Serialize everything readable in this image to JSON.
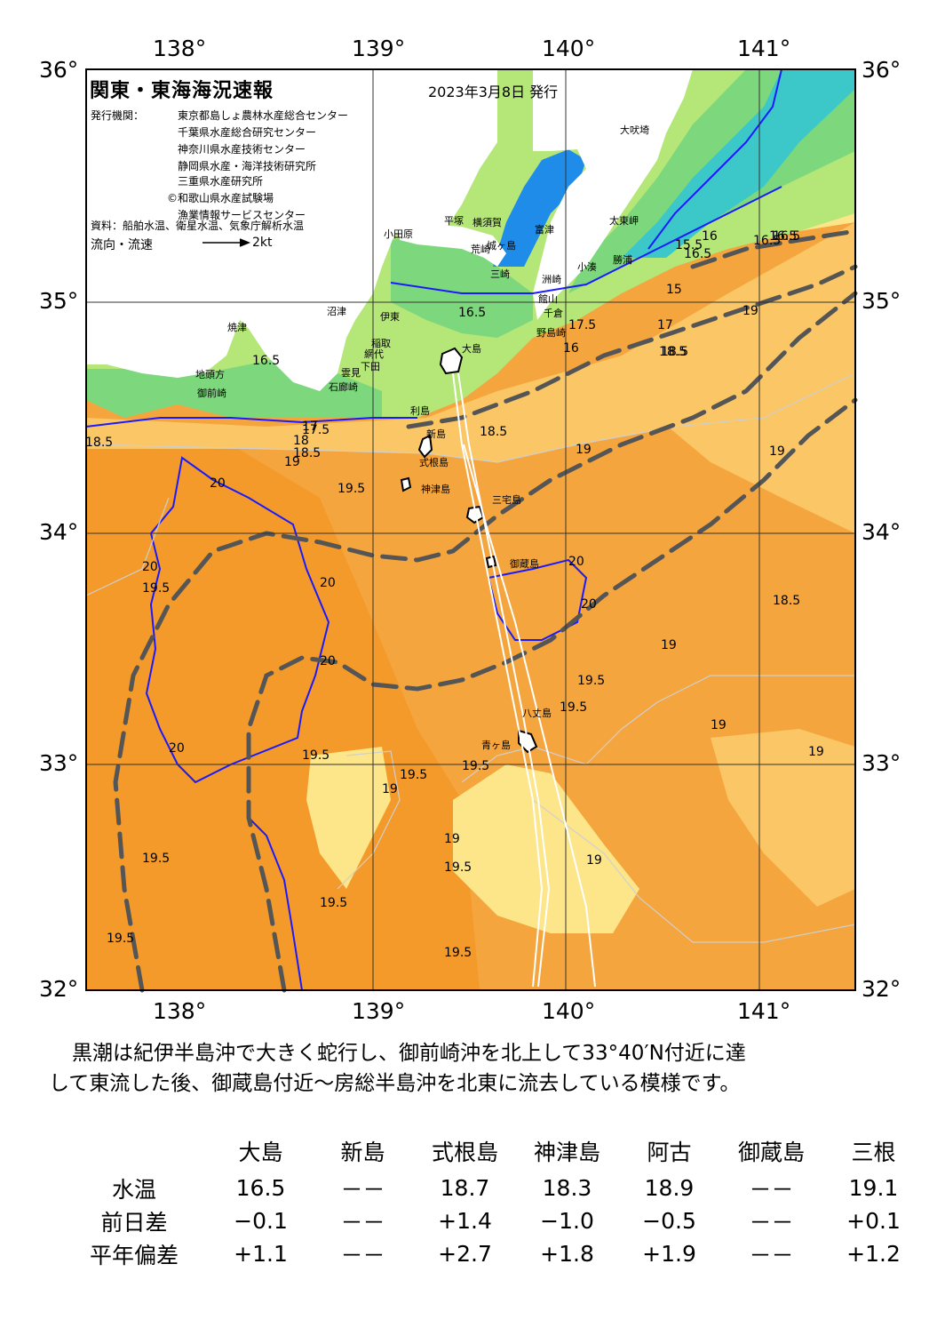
{
  "map": {
    "title": "関東・東海海況速報",
    "date": "2023年3月8日 発行",
    "agency_label": "発行機関：",
    "agencies": [
      "東京都島しょ農林水産総合センター",
      "千葉県水産総合研究センター",
      "神奈川県水産技術センター",
      "静岡県水産・海洋技術研究所",
      "三重県水産研究所",
      "©和歌山県水産試験場",
      "漁業情報サービスセンター"
    ],
    "source": "資料：船舶水温、衛星水温、気象庁解析水温",
    "flow_label": "流向・流速",
    "flow_scale": "2kt",
    "longitude_labels": [
      "138°",
      "139°",
      "140°",
      "141°"
    ],
    "latitude_labels": [
      "36°",
      "35°",
      "34°",
      "33°",
      "32°"
    ],
    "place_names": [
      "大島",
      "利島",
      "新島",
      "式根島",
      "神津島",
      "三宅島",
      "御蔵島",
      "八丈島",
      "青ヶ島",
      "大吠埼",
      "太東岬",
      "勝浦",
      "小湊",
      "館山",
      "千倉",
      "野島崎",
      "富津",
      "横須賀",
      "城ヶ島",
      "三崎",
      "平塚",
      "小田原",
      "伊東",
      "網代",
      "稲取",
      "下田",
      "石廊崎",
      "雲見",
      "沼津",
      "焼津",
      "御前崎",
      "地頭方",
      "荒崎",
      "洲崎"
    ],
    "isotherm_labels": [
      "16.5",
      "16.5",
      "16.5",
      "16.5",
      "17",
      "17.5",
      "18",
      "18.5",
      "18.5",
      "18.5",
      "18.5",
      "18.5",
      "19",
      "19",
      "19",
      "19",
      "19",
      "19",
      "19",
      "19",
      "19",
      "19.5",
      "19.5",
      "19.5",
      "19.5",
      "19.5",
      "19.5",
      "19.5",
      "19.5",
      "19.5",
      "19.5",
      "19.5",
      "19.5",
      "20",
      "20",
      "20",
      "20",
      "20",
      "20",
      "20",
      "15",
      "15.5",
      "16",
      "16.5",
      "17.5",
      "17",
      "16",
      "16.5",
      "18.5",
      "19"
    ],
    "colors": {
      "cold": "#1e8ce8",
      "cool": "#3cc8c8",
      "green": "#7dd87d",
      "lightgreen": "#b4e678",
      "yellow": "#fde68a",
      "lightorange": "#fbc665",
      "orange": "#f5a53e",
      "deeporange": "#f39a2a",
      "land": "#ffffff",
      "isotherm": "#1a1aff",
      "kuroshio": "#555555"
    }
  },
  "summary": [
    "黒潮は紀伊半島沖で大きく蛇行し、御前崎沖を北上して33°40′N付近に達",
    "して東流した後、御蔵島付近～房総半島沖を北東に流去している模様です。"
  ],
  "observations": {
    "corner": "",
    "stations": [
      "大島",
      "新島",
      "式根島",
      "神津島",
      "阿古",
      "御蔵島",
      "三根"
    ],
    "rows": [
      {
        "label": "水温",
        "values": [
          "16.5",
          "－－",
          "18.7",
          "18.3",
          "18.9",
          "－－",
          "19.1"
        ]
      },
      {
        "label": "前日差",
        "values": [
          "−0.1",
          "－－",
          "+1.4",
          "−1.0",
          "−0.5",
          "－－",
          "+0.1"
        ]
      },
      {
        "label": "平年偏差",
        "values": [
          "+1.1",
          "－－",
          "+2.7",
          "+1.8",
          "+1.9",
          "－－",
          "+1.2"
        ]
      }
    ]
  }
}
